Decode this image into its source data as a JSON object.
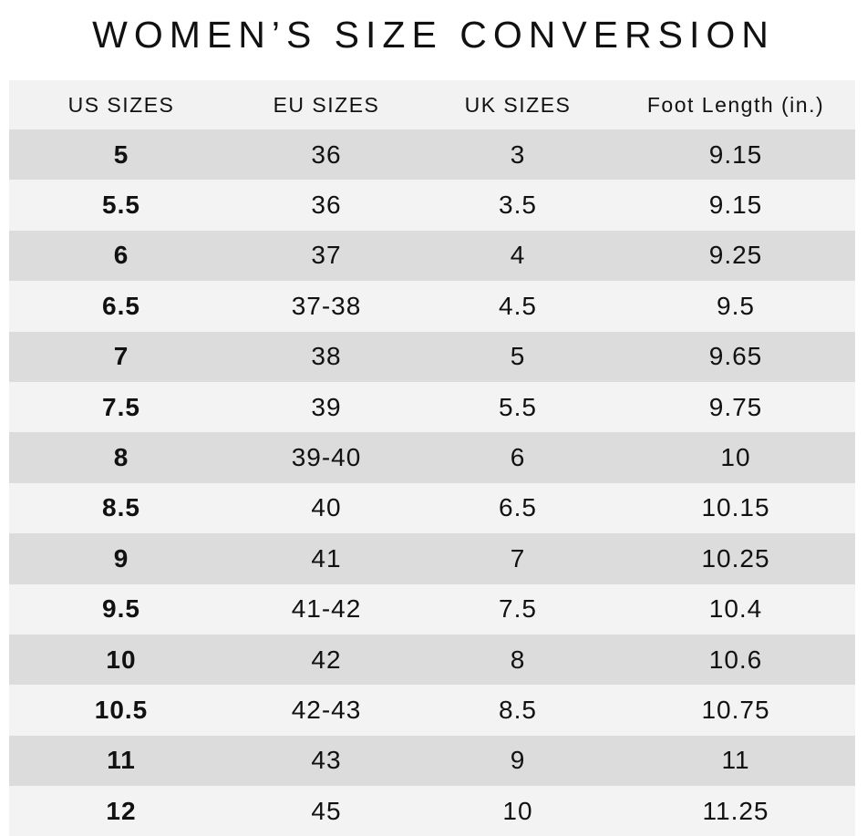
{
  "title": "WOMEN’S SIZE CONVERSION",
  "table": {
    "headers": [
      "US SIZES",
      "EU SIZES",
      "UK SIZES",
      "Foot Length (in.)"
    ],
    "rows": [
      [
        "5",
        "36",
        "3",
        "9.15"
      ],
      [
        "5.5",
        "36",
        "3.5",
        "9.15"
      ],
      [
        "6",
        "37",
        "4",
        "9.25"
      ],
      [
        "6.5",
        "37-38",
        "4.5",
        "9.5"
      ],
      [
        "7",
        "38",
        "5",
        "9.65"
      ],
      [
        "7.5",
        "39",
        "5.5",
        "9.75"
      ],
      [
        "8",
        "39-40",
        "6",
        "10"
      ],
      [
        "8.5",
        "40",
        "6.5",
        "10.15"
      ],
      [
        "9",
        "41",
        "7",
        "10.25"
      ],
      [
        "9.5",
        "41-42",
        "7.5",
        "10.4"
      ],
      [
        "10",
        "42",
        "8",
        "10.6"
      ],
      [
        "10.5",
        "42-43",
        "8.5",
        "10.75"
      ],
      [
        "11",
        "43",
        "9",
        "11"
      ],
      [
        "12",
        "45",
        "10",
        "11.25"
      ]
    ]
  }
}
